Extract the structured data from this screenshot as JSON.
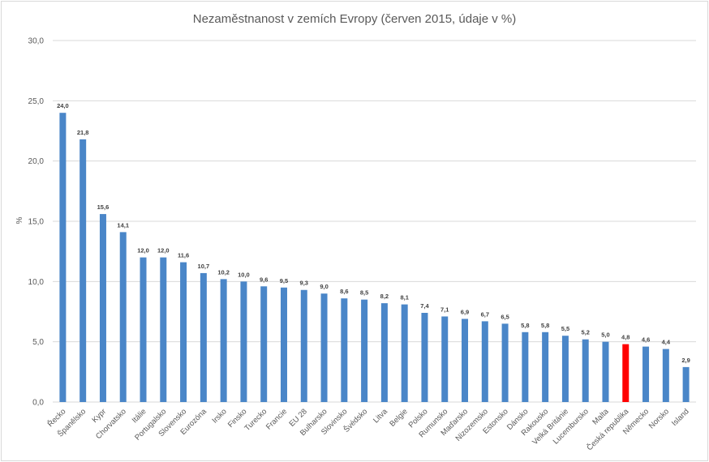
{
  "chart_data": {
    "type": "bar",
    "title": "Nezaměstnanost v zemích Evropy (červen 2015, údaje v %)",
    "xlabel": "",
    "ylabel": "%",
    "ylim": [
      0,
      30
    ],
    "yticks": [
      "0,0",
      "5,0",
      "10,0",
      "15,0",
      "20,0",
      "25,0",
      "30,0"
    ],
    "grid": true,
    "legend": "none",
    "colors": {
      "default": "#4a86c8",
      "highlight": "#ff0000",
      "grid": "#d9d9d9",
      "text": "#595959"
    },
    "highlight_category": "Česká republika",
    "categories": [
      "Řecko",
      "Španělsko",
      "Kypr",
      "Chorvatsko",
      "Itálie",
      "Portugalsko",
      "Slovensko",
      "Eurozóna",
      "Irsko",
      "Finsko",
      "Turecko",
      "Francie",
      "EU 28",
      "Bulharsko",
      "Slovinsko",
      "Švédsko",
      "Litva",
      "Belgie",
      "Polsko",
      "Rumunsko",
      "Maďarsko",
      "Nizozemsko",
      "Estonsko",
      "Dánsko",
      "Rakousko",
      "Velká Británie",
      "Lucembursko",
      "Malta",
      "Česká republika",
      "Německo",
      "Norsko",
      "Island"
    ],
    "values": [
      24.0,
      21.8,
      15.6,
      14.1,
      12.0,
      12.0,
      11.6,
      10.7,
      10.2,
      10.0,
      9.6,
      9.5,
      9.3,
      9.0,
      8.6,
      8.5,
      8.2,
      8.1,
      7.4,
      7.1,
      6.9,
      6.7,
      6.5,
      5.8,
      5.8,
      5.5,
      5.2,
      5.0,
      4.8,
      4.6,
      4.4,
      2.9
    ],
    "value_labels": [
      "24,0",
      "21,8",
      "15,6",
      "14,1",
      "12,0",
      "12,0",
      "11,6",
      "10,7",
      "10,2",
      "10,0",
      "9,6",
      "9,5",
      "9,3",
      "9,0",
      "8,6",
      "8,5",
      "8,2",
      "8,1",
      "7,4",
      "7,1",
      "6,9",
      "6,7",
      "6,5",
      "5,8",
      "5,8",
      "5,5",
      "5,2",
      "5,0",
      "4,8",
      "4,6",
      "4,4",
      "2,9"
    ]
  }
}
